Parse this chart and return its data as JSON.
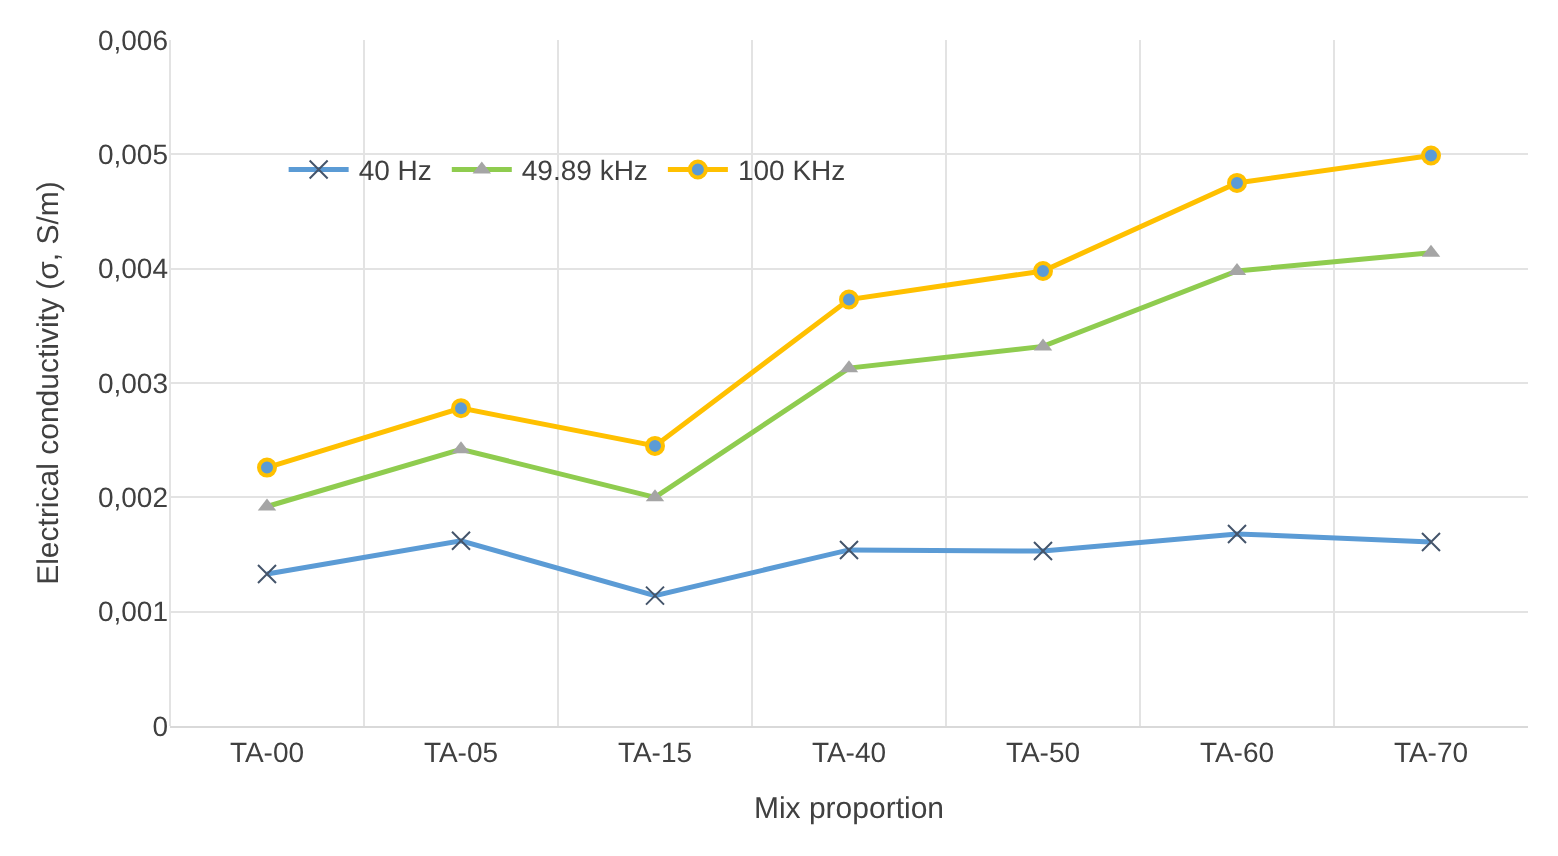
{
  "chart_data": {
    "type": "line",
    "xlabel": "Mix proportion",
    "ylabel": "Electrical conductivity (σ, S/m)",
    "categories": [
      "TA-00",
      "TA-05",
      "TA-15",
      "TA-40",
      "TA-50",
      "TA-60",
      "TA-70"
    ],
    "series": [
      {
        "name": "40 Hz",
        "color": "#5b9bd5",
        "marker": "cross",
        "values": [
          0.00133,
          0.00162,
          0.00114,
          0.00154,
          0.00153,
          0.00168,
          0.00161
        ]
      },
      {
        "name": "49.89 kHz",
        "color": "#8fcc4f",
        "marker": "triangle",
        "values": [
          0.00192,
          0.00242,
          0.002,
          0.00313,
          0.00332,
          0.00398,
          0.00414
        ]
      },
      {
        "name": "100 KHz",
        "color": "#ffc000",
        "marker": "circle",
        "values": [
          0.00226,
          0.00278,
          0.00245,
          0.00373,
          0.00398,
          0.00475,
          0.00499
        ]
      }
    ],
    "ylim": [
      0,
      0.006
    ],
    "yticks": [
      0,
      {
        "value": 0.001,
        "label": "0,001"
      },
      {
        "value": 0.002,
        "label": "0,002"
      },
      {
        "value": 0.003,
        "label": "0,003"
      },
      {
        "value": 0.004,
        "label": "0,004"
      },
      {
        "value": 0.005,
        "label": "0,005"
      },
      {
        "value": 0.006,
        "label": "0,006"
      }
    ],
    "grid": true,
    "legend": "top left",
    "line_style": "solid"
  }
}
